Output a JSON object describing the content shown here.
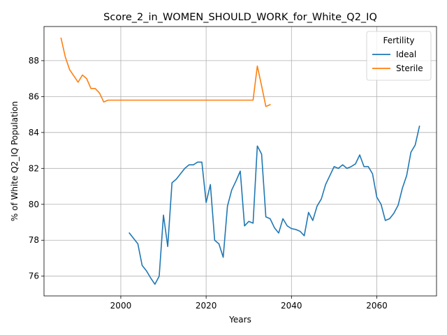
{
  "chart_data": {
    "type": "line",
    "title": "Score_2_in_WOMEN_SHOULD_WORK_for_White_Q2_IQ",
    "xlabel": "Years",
    "ylabel": "% of White Q2_IQ Population",
    "xlim": [
      1982,
      2074
    ],
    "ylim": [
      74.9,
      89.9
    ],
    "xticks": [
      2000,
      2020,
      2040,
      2060
    ],
    "yticks": [
      76,
      78,
      80,
      82,
      84,
      86,
      88
    ],
    "grid": true,
    "legend": {
      "title": "Fertility",
      "position": "top-right"
    },
    "series": [
      {
        "name": "Ideal",
        "color": "#1f77b4",
        "x": [
          2002,
          2003,
          2004,
          2005,
          2006,
          2007,
          2008,
          2009,
          2010,
          2011,
          2012,
          2013,
          2014,
          2015,
          2016,
          2017,
          2018,
          2019,
          2020,
          2021,
          2022,
          2023,
          2024,
          2025,
          2026,
          2027,
          2028,
          2029,
          2030,
          2031,
          2032,
          2033,
          2034,
          2035,
          2036,
          2037,
          2038,
          2039,
          2040,
          2041,
          2042,
          2043,
          2044,
          2045,
          2046,
          2047,
          2048,
          2049,
          2050,
          2051,
          2052,
          2053,
          2054,
          2055,
          2056,
          2057,
          2058,
          2059,
          2060,
          2061,
          2062,
          2063,
          2064,
          2065,
          2066,
          2067,
          2068,
          2069,
          2070
        ],
        "values": [
          78.4,
          78.1,
          77.8,
          76.6,
          76.3,
          75.9,
          75.55,
          76.0,
          79.4,
          77.65,
          81.2,
          81.4,
          81.7,
          82.0,
          82.2,
          82.2,
          82.35,
          82.35,
          80.1,
          81.1,
          78.0,
          77.8,
          77.05,
          79.9,
          80.8,
          81.3,
          81.85,
          78.8,
          79.05,
          78.95,
          83.25,
          82.8,
          79.3,
          79.2,
          78.7,
          78.4,
          79.2,
          78.8,
          78.65,
          78.6,
          78.5,
          78.25,
          79.55,
          79.1,
          79.9,
          80.3,
          81.1,
          81.6,
          82.1,
          82.0,
          82.2,
          82.0,
          82.1,
          82.25,
          82.75,
          82.1,
          82.1,
          81.7,
          80.4,
          80.0,
          79.1,
          79.2,
          79.5,
          79.95,
          80.9,
          81.6,
          82.9,
          83.3,
          84.35
        ]
      },
      {
        "name": "Sterile",
        "color": "#ff7f0e",
        "x": [
          1986,
          1987,
          1988,
          1989,
          1990,
          1991,
          1992,
          1993,
          1994,
          1995,
          1996,
          1997,
          1998,
          2000,
          2005,
          2010,
          2015,
          2020,
          2025,
          2030,
          2031,
          2032,
          2033,
          2034,
          2035
        ],
        "values": [
          89.25,
          88.2,
          87.5,
          87.15,
          86.8,
          87.2,
          87.0,
          86.45,
          86.45,
          86.2,
          85.7,
          85.8,
          85.8,
          85.8,
          85.8,
          85.8,
          85.8,
          85.8,
          85.8,
          85.8,
          85.8,
          87.7,
          86.6,
          85.45,
          85.55
        ]
      }
    ]
  }
}
